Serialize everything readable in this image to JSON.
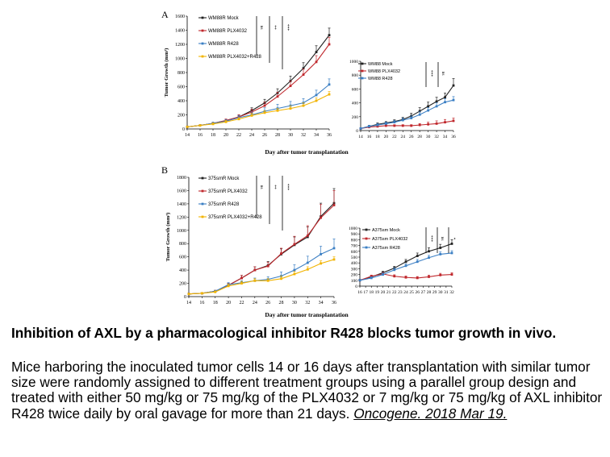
{
  "x_axis_title": "Day after tumor transplantation",
  "caption": {
    "title": "Inhibition of AXL by a pharmacological inhibitor R428 blocks tumor growth in vivo.",
    "body": "Mice harboring the inoculated tumor cells 14 or 16 days after transplantation with similar tumor size were randomly assigned to different treatment groups using a parallel group design and treated with either 50 mg/kg or 75 mg/kg of the PLX4032 or 7 mg/kg or 75 mg/kg of AXL inhibitor R428 twice daily by oral gavage for more than 21 days.",
    "reference": "Oncogene. 2018 Mar 19."
  },
  "colors": {
    "mock": "#222222",
    "plx": "#c0282d",
    "r428": "#3b7fc4",
    "combo": "#f2b400"
  },
  "chart_data": [
    {
      "type": "line",
      "panel": "A",
      "ylabel": "Tumor Growth (mm³)",
      "x": [
        14,
        16,
        18,
        20,
        22,
        24,
        26,
        28,
        30,
        32,
        34,
        36
      ],
      "xlim": [
        14,
        36
      ],
      "ylim": [
        0,
        1600
      ],
      "yticks": [
        0,
        200,
        400,
        600,
        800,
        1000,
        1200,
        1400,
        1600
      ],
      "significance": [
        "ns",
        "**",
        "***"
      ],
      "series": [
        {
          "name": "WM88R Mock",
          "color": "mock",
          "values": [
            30,
            50,
            80,
            120,
            170,
            260,
            370,
            510,
            680,
            860,
            1090,
            1330
          ],
          "err": [
            10,
            10,
            15,
            20,
            30,
            40,
            50,
            60,
            70,
            80,
            90,
            100
          ]
        },
        {
          "name": "WM88R PLX4032",
          "color": "plx",
          "values": [
            30,
            50,
            80,
            120,
            170,
            240,
            330,
            460,
            610,
            770,
            950,
            1200
          ],
          "err": [
            10,
            10,
            15,
            20,
            30,
            40,
            50,
            60,
            70,
            80,
            90,
            100
          ]
        },
        {
          "name": "WM88R R428",
          "color": "r428",
          "values": [
            30,
            50,
            80,
            110,
            160,
            200,
            250,
            290,
            330,
            370,
            480,
            630
          ],
          "err": [
            10,
            10,
            15,
            20,
            30,
            40,
            50,
            60,
            60,
            60,
            70,
            80
          ]
        },
        {
          "name": "WM88R PLX4032+R428",
          "color": "combo",
          "values": [
            30,
            50,
            70,
            100,
            140,
            190,
            230,
            260,
            290,
            330,
            400,
            490
          ],
          "err": [
            10,
            10,
            15,
            20,
            20,
            30,
            30,
            30,
            40,
            40,
            40,
            40
          ]
        }
      ]
    },
    {
      "type": "line",
      "panel": "A-inset",
      "x": [
        14,
        16,
        18,
        20,
        22,
        24,
        26,
        28,
        30,
        32,
        34,
        36
      ],
      "xlim": [
        14,
        36
      ],
      "ylim": [
        0,
        1000
      ],
      "yticks": [
        0,
        200,
        400,
        600,
        800,
        1000
      ],
      "significance": [
        "***",
        "ns"
      ],
      "series": [
        {
          "name": "WM88 Mock",
          "color": "mock",
          "values": [
            30,
            60,
            90,
            110,
            130,
            160,
            210,
            280,
            350,
            420,
            480,
            650
          ],
          "err": [
            10,
            15,
            20,
            20,
            25,
            30,
            40,
            50,
            60,
            60,
            60,
            100
          ]
        },
        {
          "name": "WM88 PLX4032",
          "color": "plx",
          "values": [
            30,
            50,
            60,
            70,
            70,
            70,
            70,
            80,
            90,
            100,
            120,
            140
          ],
          "err": [
            10,
            10,
            10,
            15,
            15,
            15,
            15,
            20,
            30,
            40,
            40,
            40
          ]
        },
        {
          "name": "WM88 R428",
          "color": "r428",
          "values": [
            30,
            60,
            80,
            100,
            120,
            150,
            180,
            230,
            290,
            350,
            410,
            440
          ],
          "err": [
            10,
            15,
            20,
            20,
            25,
            30,
            30,
            40,
            40,
            50,
            50,
            50
          ]
        }
      ]
    },
    {
      "type": "line",
      "panel": "B",
      "ylabel": "Tumor Growth (mm³)",
      "x": [
        14,
        16,
        18,
        20,
        22,
        24,
        26,
        28,
        30,
        32,
        34,
        36
      ],
      "xlim": [
        14,
        36
      ],
      "ylim": [
        0,
        1800
      ],
      "yticks": [
        0,
        200,
        400,
        600,
        800,
        1000,
        1200,
        1400,
        1600,
        1800
      ],
      "significance": [
        "ns",
        "**",
        "***"
      ],
      "series": [
        {
          "name": "375smR Mock",
          "color": "mock",
          "values": [
            40,
            50,
            80,
            170,
            280,
            400,
            470,
            640,
            780,
            900,
            1210,
            1410
          ],
          "err": [
            10,
            10,
            15,
            30,
            40,
            50,
            60,
            80,
            120,
            150,
            200,
            220
          ]
        },
        {
          "name": "375smR PLX4032",
          "color": "plx",
          "values": [
            40,
            50,
            80,
            170,
            280,
            400,
            460,
            650,
            790,
            920,
            1190,
            1380
          ],
          "err": [
            10,
            10,
            15,
            30,
            40,
            50,
            60,
            80,
            120,
            150,
            200,
            220
          ]
        },
        {
          "name": "375smR R428",
          "color": "r428",
          "values": [
            40,
            50,
            80,
            180,
            210,
            240,
            260,
            310,
            400,
            510,
            640,
            730
          ],
          "err": [
            10,
            10,
            15,
            30,
            30,
            40,
            40,
            60,
            80,
            100,
            120,
            140
          ]
        },
        {
          "name": "375smR PLX4032+R428",
          "color": "combo",
          "values": [
            40,
            50,
            70,
            160,
            200,
            240,
            240,
            270,
            340,
            410,
            500,
            560
          ],
          "err": [
            10,
            10,
            15,
            30,
            30,
            30,
            30,
            40,
            40,
            40,
            40,
            40
          ]
        }
      ]
    },
    {
      "type": "line",
      "panel": "B-inset",
      "x": [
        16,
        18,
        20,
        22,
        24,
        26,
        28,
        30,
        32
      ],
      "xticks": [
        16,
        17,
        18,
        19,
        20,
        21,
        22,
        23,
        24,
        25,
        26,
        27,
        28,
        29,
        30,
        31,
        32
      ],
      "xlim": [
        16,
        32
      ],
      "ylim": [
        0,
        1000
      ],
      "yticks": [
        0,
        100,
        200,
        300,
        400,
        500,
        600,
        700,
        800,
        900,
        1000
      ],
      "significance": [
        "***",
        "ns",
        "*"
      ],
      "series": [
        {
          "name": "A375sm Mock",
          "color": "mock",
          "values": [
            100,
            160,
            230,
            310,
            420,
            520,
            600,
            660,
            730
          ],
          "err": [
            15,
            20,
            25,
            30,
            40,
            50,
            60,
            60,
            70
          ]
        },
        {
          "name": "A375sm PLX4032",
          "color": "plx",
          "values": [
            100,
            170,
            210,
            170,
            150,
            140,
            160,
            190,
            200
          ],
          "err": [
            15,
            20,
            25,
            25,
            25,
            25,
            30,
            30,
            30
          ]
        },
        {
          "name": "A375sm R428",
          "color": "r428",
          "values": [
            100,
            140,
            200,
            280,
            350,
            420,
            490,
            550,
            570
          ],
          "err": [
            15,
            20,
            25,
            30,
            35,
            40,
            40,
            40,
            40
          ]
        }
      ]
    }
  ]
}
